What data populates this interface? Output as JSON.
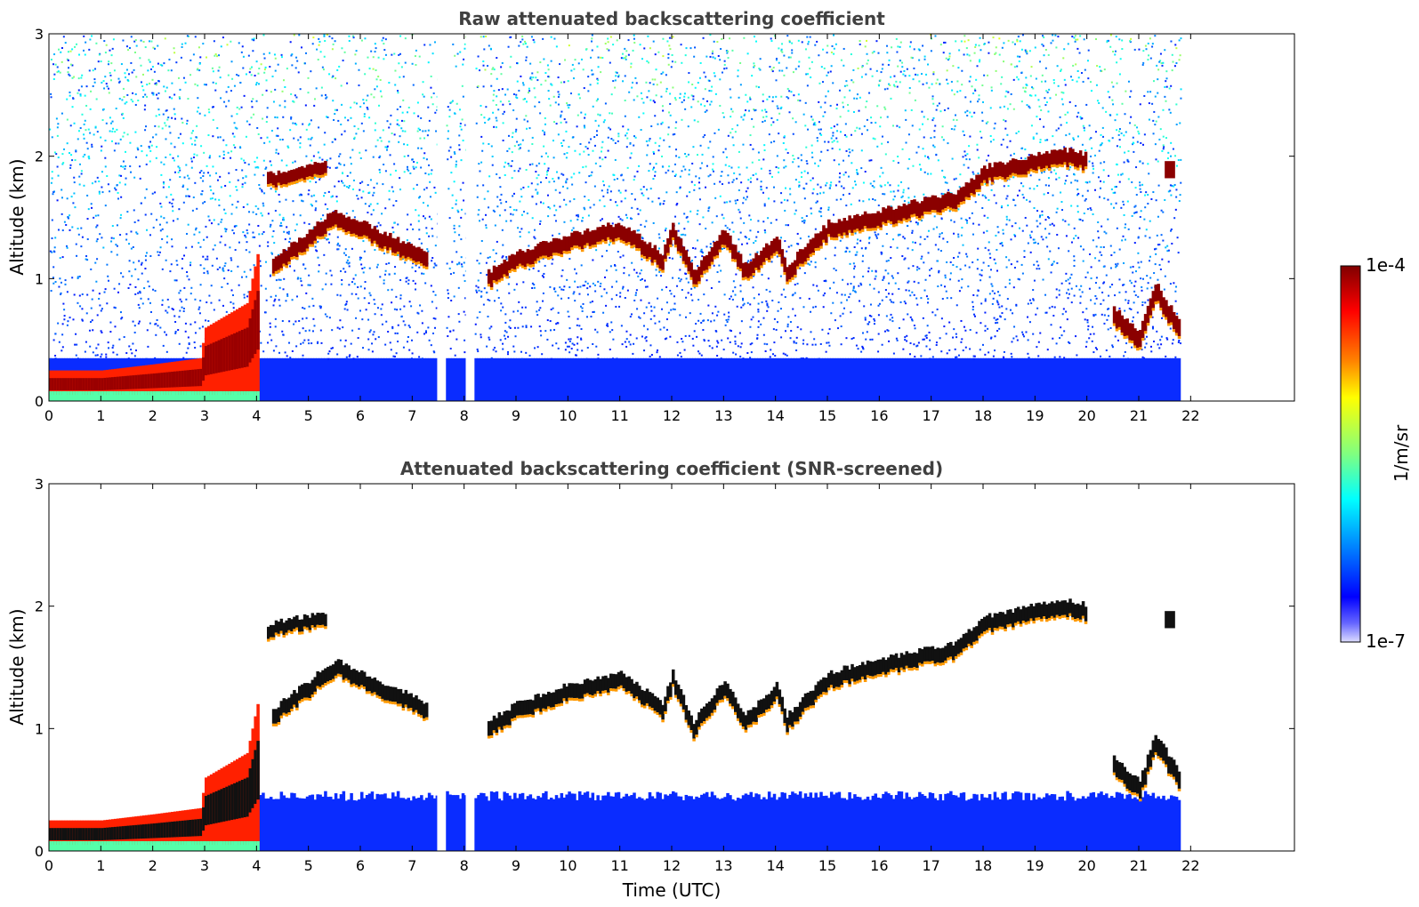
{
  "chart_data": [
    {
      "type": "heatmap",
      "title": "Raw attenuated backscattering coefficient",
      "xlabel": "",
      "ylabel": "Altitude (km)",
      "xlim": [
        0,
        24
      ],
      "ylim": [
        0,
        3
      ],
      "x_ticks": [
        "0",
        "1",
        "2",
        "3",
        "4",
        "5",
        "6",
        "7",
        "8",
        "9",
        "10",
        "11",
        "12",
        "13",
        "14",
        "15",
        "16",
        "17",
        "18",
        "19",
        "20",
        "21",
        "22"
      ],
      "y_ticks": [
        "0",
        "1",
        "2",
        "3"
      ],
      "data_end_hour": 21.8,
      "data_gaps_hours": [
        7.55,
        8.1
      ],
      "colorscale": "jet",
      "layers": {
        "boundary_layer_top_km": [
          [
            0,
            0.25
          ],
          [
            1,
            0.25
          ],
          [
            2,
            0.3
          ],
          [
            2.9,
            0.35
          ],
          [
            3,
            0.6
          ],
          [
            3.8,
            0.8
          ],
          [
            4,
            1.2
          ]
        ],
        "cloud_layer_km": [
          [
            4.3,
            1.1
          ],
          [
            5.5,
            1.5
          ],
          [
            8.3,
            0.95
          ],
          [
            9,
            1.15
          ],
          [
            10,
            1.3
          ],
          [
            11,
            1.4
          ],
          [
            11.8,
            1.15
          ],
          [
            12,
            1.4
          ],
          [
            12.4,
            1.0
          ],
          [
            13,
            1.35
          ],
          [
            13.4,
            1.05
          ],
          [
            14,
            1.3
          ],
          [
            14.2,
            1.05
          ],
          [
            15,
            1.4
          ],
          [
            16,
            1.5
          ],
          [
            16.5,
            1.55
          ],
          [
            17.5,
            1.65
          ],
          [
            18,
            1.85
          ],
          [
            19,
            1.95
          ],
          [
            19.5,
            2.0
          ],
          [
            20,
            1.95
          ]
        ],
        "upper_cloud_km": [
          [
            4.2,
            1.8
          ],
          [
            4.7,
            1.85
          ],
          [
            5.3,
            1.9
          ],
          [
            21.5,
            1.9
          ]
        ],
        "late_layer_km": [
          [
            20.5,
            0.7
          ],
          [
            21,
            0.5
          ],
          [
            21.3,
            0.9
          ],
          [
            21.8,
            0.55
          ]
        ]
      }
    },
    {
      "type": "heatmap",
      "title": "Attenuated backscattering coefficient (SNR-screened)",
      "xlabel": "Time (UTC)",
      "ylabel": "Altitude (km)",
      "xlim": [
        0,
        24
      ],
      "ylim": [
        0,
        3
      ],
      "x_ticks": [
        "0",
        "1",
        "2",
        "3",
        "4",
        "5",
        "6",
        "7",
        "8",
        "9",
        "10",
        "11",
        "12",
        "13",
        "14",
        "15",
        "16",
        "17",
        "18",
        "19",
        "20",
        "21",
        "22"
      ],
      "y_ticks": [
        "0",
        "1",
        "2",
        "3"
      ],
      "data_end_hour": 21.8,
      "data_gaps_hours": [
        7.55,
        8.1
      ],
      "colorscale": "jet",
      "screened_noise_top_km": 0.45
    }
  ],
  "colorbar": {
    "label": "1/m/sr",
    "max_label": "1e-4",
    "min_label": "1e-7",
    "colors": [
      "#800000",
      "#ff0000",
      "#ff8000",
      "#ffff00",
      "#80ff80",
      "#00ffff",
      "#0080ff",
      "#0000ff",
      "#000090"
    ]
  }
}
